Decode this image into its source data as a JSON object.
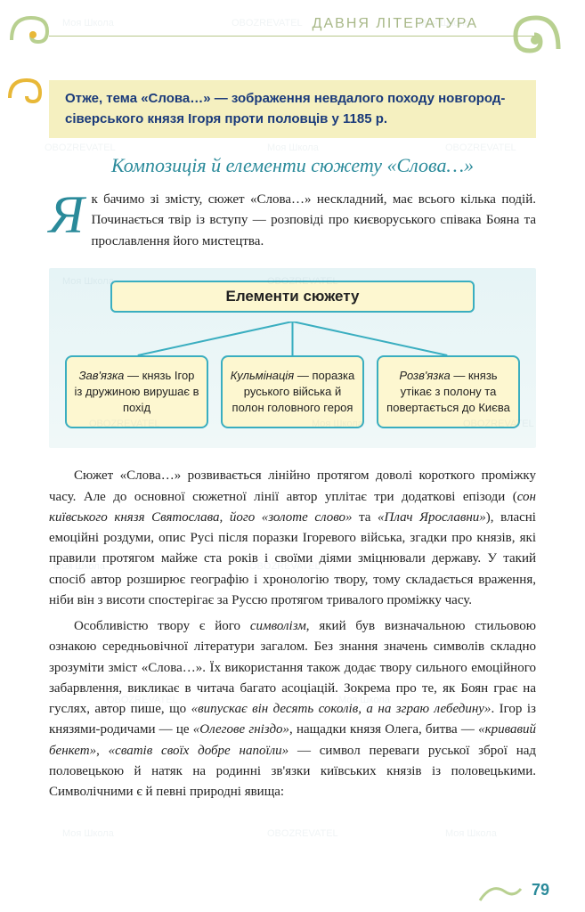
{
  "section_label": "ДАВНЯ ЛІТЕРАТУРА",
  "highlight": {
    "text": "Отже, тема «Слова…» — зображення невдалого походу новгород-сіверського князя Ігоря проти половців у 1185 р."
  },
  "subheading": "Композиція й елементи сюжету «Слова…»",
  "intro_dropcap": "Я",
  "intro_text": "к бачимо зі змісту, сюжет «Слова…» нескладний, має всього кілька подій. Починається твір із вступу — розповіді про києворуського співака Бояна та прославлення його мистецтва.",
  "diagram": {
    "title": "Елементи сюжету",
    "boxes": [
      {
        "term": "Зав'язка",
        "desc": " — князь Ігор із дружиною вирушає в похід"
      },
      {
        "term": "Кульмінація",
        "desc": " — поразка руського війська й полон головного героя"
      },
      {
        "term": "Розв'язка",
        "desc": " — князь утікає з полону та повертається до Києва"
      }
    ],
    "colors": {
      "box_bg": "#fdf7d0",
      "box_border": "#3aaec0",
      "panel_bg": "#e6f4f6"
    }
  },
  "paragraphs": [
    "Сюжет «Слова…» розвивається лінійно протягом доволі короткого проміжку часу. Але до основної сюжетної лінії автор уплітає три додаткові епізоди (<em>сон київського князя Святослава, його «золоте слово»</em> та <em>«Плач Ярославни»</em>), власні емоційні роздуми, опис Русі після поразки Ігоревого війська, згадки про князів, які правили протягом майже ста років і своїми діями зміцнювали державу. У такий спосіб автор розширює географію і хронологію твору, тому складається враження, ніби він з висоти спостерігає за Руссю протягом тривалого проміжку часу.",
    "Особливістю твору є його <em>символізм</em>, який був визначальною стильовою ознакою середньовічної літератури загалом. Без знання значень символів складно зрозуміти зміст «Слова…». Їх використання також додає твору сильного емоційного забарвлення, викликає в читача багато асоціацій. Зокрема про те, як Боян грає на гуслях, автор пише, що <em>«випускає він десять соколів, а на зграю лебедину»</em>. Ігор із князями-родичами — це <em>«Олегове гніздо»</em>, нащадки князя Олега, битва — <em>«кривавий бенкет»</em>, <em>«сватів своїх добре напоїли»</em> — символ переваги руської зброї над половецькою й натяк на родинні зв'язки київських князів із половецькими. Символічними є й певні природні явища:"
  ],
  "page_number": "79",
  "ornament_color": "#b8d090",
  "ornament_accent": "#e8b838"
}
